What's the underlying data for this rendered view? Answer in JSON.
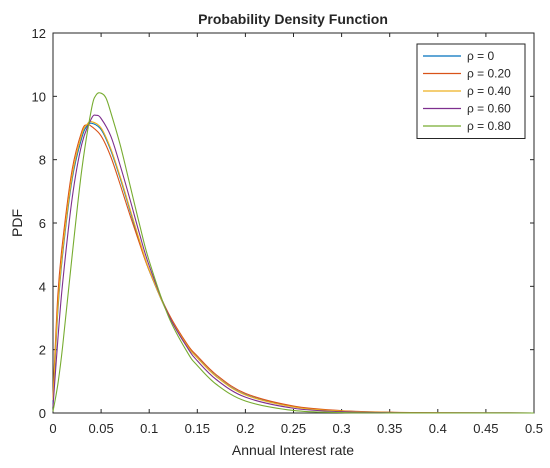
{
  "chart_data": {
    "type": "line",
    "title": "Probability Density Function",
    "xlabel": "Annual Interest rate",
    "ylabel": "PDF",
    "xlim": [
      0,
      0.5
    ],
    "ylim": [
      0,
      12
    ],
    "x_ticks": [
      "0",
      "0.05",
      "0.1",
      "0.15",
      "0.2",
      "0.25",
      "0.3",
      "0.35",
      "0.4",
      "0.45",
      "0.5"
    ],
    "y_ticks": [
      "0",
      "2",
      "4",
      "6",
      "8",
      "10",
      "12"
    ],
    "grid": false,
    "legend_position": "top-right",
    "series": [
      {
        "name": "ρ = 0",
        "color": "#0072BD",
        "points": [
          [
            0,
            0.3
          ],
          [
            0.005,
            3.2
          ],
          [
            0.01,
            5.0
          ],
          [
            0.02,
            7.4
          ],
          [
            0.03,
            8.7
          ],
          [
            0.035,
            9.05
          ],
          [
            0.04,
            9.15
          ],
          [
            0.05,
            8.95
          ],
          [
            0.06,
            8.3
          ],
          [
            0.07,
            7.4
          ],
          [
            0.08,
            6.4
          ],
          [
            0.09,
            5.4
          ],
          [
            0.1,
            4.5
          ],
          [
            0.12,
            3.1
          ],
          [
            0.14,
            2.1
          ],
          [
            0.15,
            1.75
          ],
          [
            0.17,
            1.15
          ],
          [
            0.2,
            0.58
          ],
          [
            0.25,
            0.2
          ],
          [
            0.3,
            0.065
          ],
          [
            0.35,
            0.02
          ],
          [
            0.4,
            0.005
          ],
          [
            0.5,
            0.0
          ]
        ]
      },
      {
        "name": "ρ = 0.20",
        "color": "#D95319",
        "points": [
          [
            0,
            0.5
          ],
          [
            0.005,
            3.7
          ],
          [
            0.01,
            5.4
          ],
          [
            0.02,
            7.7
          ],
          [
            0.03,
            8.9
          ],
          [
            0.035,
            9.1
          ],
          [
            0.04,
            9.05
          ],
          [
            0.05,
            8.75
          ],
          [
            0.06,
            8.1
          ],
          [
            0.07,
            7.2
          ],
          [
            0.08,
            6.25
          ],
          [
            0.09,
            5.35
          ],
          [
            0.1,
            4.5
          ],
          [
            0.12,
            3.15
          ],
          [
            0.14,
            2.15
          ],
          [
            0.15,
            1.8
          ],
          [
            0.17,
            1.2
          ],
          [
            0.2,
            0.62
          ],
          [
            0.25,
            0.22
          ],
          [
            0.3,
            0.075
          ],
          [
            0.35,
            0.025
          ],
          [
            0.4,
            0.007
          ],
          [
            0.5,
            0.0
          ]
        ]
      },
      {
        "name": "ρ = 0.40",
        "color": "#EDB120",
        "points": [
          [
            0,
            0.4
          ],
          [
            0.005,
            3.3
          ],
          [
            0.01,
            5.1
          ],
          [
            0.02,
            7.5
          ],
          [
            0.03,
            8.8
          ],
          [
            0.035,
            9.1
          ],
          [
            0.04,
            9.2
          ],
          [
            0.05,
            9.0
          ],
          [
            0.06,
            8.35
          ],
          [
            0.07,
            7.45
          ],
          [
            0.08,
            6.45
          ],
          [
            0.09,
            5.45
          ],
          [
            0.1,
            4.52
          ],
          [
            0.12,
            3.1
          ],
          [
            0.14,
            2.1
          ],
          [
            0.15,
            1.74
          ],
          [
            0.17,
            1.14
          ],
          [
            0.2,
            0.57
          ],
          [
            0.25,
            0.19
          ],
          [
            0.3,
            0.06
          ],
          [
            0.35,
            0.018
          ],
          [
            0.4,
            0.005
          ],
          [
            0.5,
            0.0
          ]
        ]
      },
      {
        "name": "ρ = 0.60",
        "color": "#7E2F8E",
        "points": [
          [
            0,
            0.2
          ],
          [
            0.005,
            2.3
          ],
          [
            0.01,
            4.1
          ],
          [
            0.02,
            6.8
          ],
          [
            0.03,
            8.5
          ],
          [
            0.04,
            9.3
          ],
          [
            0.045,
            9.4
          ],
          [
            0.05,
            9.3
          ],
          [
            0.06,
            8.75
          ],
          [
            0.07,
            7.8
          ],
          [
            0.08,
            6.75
          ],
          [
            0.09,
            5.65
          ],
          [
            0.1,
            4.65
          ],
          [
            0.12,
            3.1
          ],
          [
            0.14,
            2.05
          ],
          [
            0.15,
            1.65
          ],
          [
            0.17,
            1.05
          ],
          [
            0.2,
            0.5
          ],
          [
            0.25,
            0.15
          ],
          [
            0.3,
            0.04
          ],
          [
            0.35,
            0.01
          ],
          [
            0.4,
            0.003
          ],
          [
            0.5,
            0.0
          ]
        ]
      },
      {
        "name": "ρ = 0.80",
        "color": "#77AC30",
        "points": [
          [
            0,
            0.05
          ],
          [
            0.005,
            0.9
          ],
          [
            0.01,
            2.1
          ],
          [
            0.02,
            5.0
          ],
          [
            0.03,
            7.7
          ],
          [
            0.04,
            9.6
          ],
          [
            0.045,
            10.05
          ],
          [
            0.05,
            10.1
          ],
          [
            0.055,
            9.95
          ],
          [
            0.06,
            9.5
          ],
          [
            0.07,
            8.45
          ],
          [
            0.08,
            7.2
          ],
          [
            0.09,
            5.95
          ],
          [
            0.1,
            4.8
          ],
          [
            0.12,
            3.05
          ],
          [
            0.14,
            1.9
          ],
          [
            0.15,
            1.5
          ],
          [
            0.17,
            0.9
          ],
          [
            0.2,
            0.38
          ],
          [
            0.25,
            0.08
          ],
          [
            0.3,
            0.015
          ],
          [
            0.35,
            0.003
          ],
          [
            0.4,
            0.0
          ],
          [
            0.5,
            0.0
          ]
        ]
      }
    ]
  }
}
